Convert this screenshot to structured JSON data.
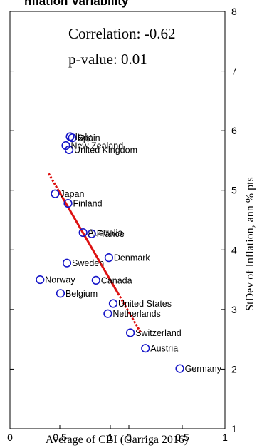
{
  "chart_data": {
    "type": "scatter",
    "title": "nflation Variability",
    "xlabel": "Average of CBI (Garriga 2016)",
    "ylabel": "StDev of Inflation, ann % pts",
    "x_tick_labels": [
      "0",
      "0.5",
      "1",
      "0",
      "0.5",
      "1"
    ],
    "y_ticks": [
      1,
      2,
      3,
      4,
      5,
      6,
      7,
      8
    ],
    "y_tick_labels": [
      "1",
      "2",
      "3",
      "4",
      "5",
      "6",
      "7",
      "8"
    ],
    "xlim": [
      0,
      1
    ],
    "ylim": [
      1,
      8
    ],
    "grid": false,
    "annotations": [
      "Correlation: -0.62",
      "p-value: 0.01"
    ],
    "colors": {
      "points": "#1515c8",
      "fit_line": "#dd1111",
      "axes": "#000000"
    },
    "points": [
      {
        "label": "Italy",
        "x": 0.28,
        "y": 5.9
      },
      {
        "label": "Spain",
        "x": 0.29,
        "y": 5.88
      },
      {
        "label": "New Zealand",
        "x": 0.26,
        "y": 5.75
      },
      {
        "label": "United Kingdom",
        "x": 0.275,
        "y": 5.68
      },
      {
        "label": "Japan",
        "x": 0.21,
        "y": 4.94
      },
      {
        "label": "Finland",
        "x": 0.27,
        "y": 4.78
      },
      {
        "label": "Australia",
        "x": 0.34,
        "y": 4.29
      },
      {
        "label": "France",
        "x": 0.38,
        "y": 4.27
      },
      {
        "label": "Denmark",
        "x": 0.46,
        "y": 3.87
      },
      {
        "label": "Sweden",
        "x": 0.265,
        "y": 3.78
      },
      {
        "label": "Norway",
        "x": 0.14,
        "y": 3.5
      },
      {
        "label": "Canada",
        "x": 0.4,
        "y": 3.49
      },
      {
        "label": "Belgium",
        "x": 0.235,
        "y": 3.27
      },
      {
        "label": "United States",
        "x": 0.48,
        "y": 3.1
      },
      {
        "label": "Netherlands",
        "x": 0.455,
        "y": 2.93
      },
      {
        "label": "Switzerland",
        "x": 0.56,
        "y": 2.61
      },
      {
        "label": "Austria",
        "x": 0.63,
        "y": 2.35
      },
      {
        "label": "Germany",
        "x": 0.79,
        "y": 2.01
      }
    ],
    "fit_line": {
      "x": [
        0.18,
        0.61
      ],
      "y": [
        5.28,
        2.6
      ]
    }
  }
}
